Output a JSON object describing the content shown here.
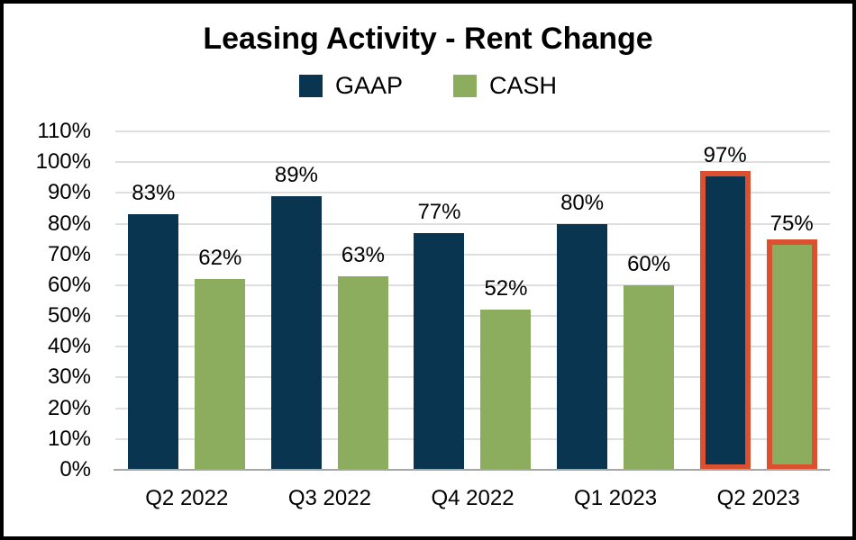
{
  "title": "Leasing Activity - Rent Change",
  "chart_data": {
    "type": "bar",
    "title": "Leasing Activity - Rent Change",
    "categories": [
      "Q2 2022",
      "Q3 2022",
      "Q4 2022",
      "Q1 2023",
      "Q2 2023"
    ],
    "series": [
      {
        "name": "GAAP",
        "color": "#0a3551",
        "values": [
          83,
          89,
          77,
          80,
          97
        ],
        "labels": [
          "83%",
          "89%",
          "77%",
          "80%",
          "97%"
        ]
      },
      {
        "name": "CASH",
        "color": "#8cad5e",
        "values": [
          62,
          63,
          52,
          60,
          75
        ],
        "labels": [
          "62%",
          "63%",
          "52%",
          "60%",
          "75%"
        ]
      }
    ],
    "y_axis": {
      "min": 0,
      "max": 110,
      "step": 10,
      "tick_suffix": "%",
      "tick_labels": [
        "0%",
        "10%",
        "20%",
        "30%",
        "40%",
        "50%",
        "60%",
        "70%",
        "80%",
        "90%",
        "100%",
        "110%"
      ]
    },
    "xlabel": "",
    "ylabel": "",
    "grid": true,
    "legend_position": "top",
    "highlight": {
      "category": "Q2 2023",
      "color": "#db5130",
      "border_width": 6
    },
    "colors": {
      "gridline": "#dedede",
      "axis_line": "#a6a6a6",
      "frame_border": "#000000",
      "background": "#ffffff",
      "label_text": "#000000"
    }
  }
}
